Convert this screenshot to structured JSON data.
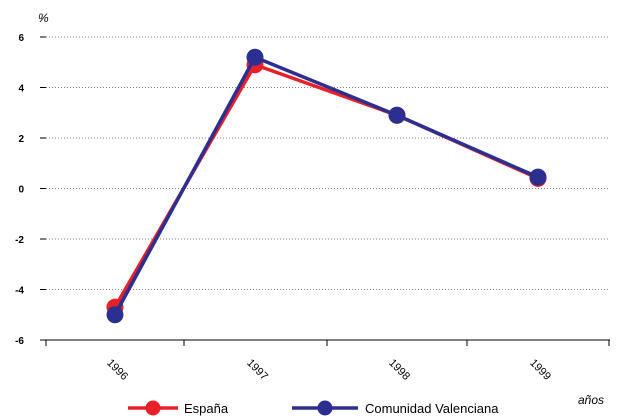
{
  "chart_data": {
    "type": "line",
    "ylabel": "%",
    "xlabel": "años",
    "categories": [
      "1996",
      "1997",
      "1998",
      "1999"
    ],
    "ylim": [
      -6,
      6
    ],
    "yticks": [
      -6,
      -4,
      -2,
      0,
      2,
      4,
      6
    ],
    "grid": "horizontal",
    "legend_position": "bottom",
    "series": [
      {
        "name": "España",
        "color": "#e8202a",
        "values": [
          -4.7,
          4.9,
          2.9,
          0.4
        ]
      },
      {
        "name": "Comunidad Valenciana",
        "color": "#2b2f8f",
        "values": [
          -5.0,
          5.2,
          2.9,
          0.45
        ]
      }
    ]
  }
}
